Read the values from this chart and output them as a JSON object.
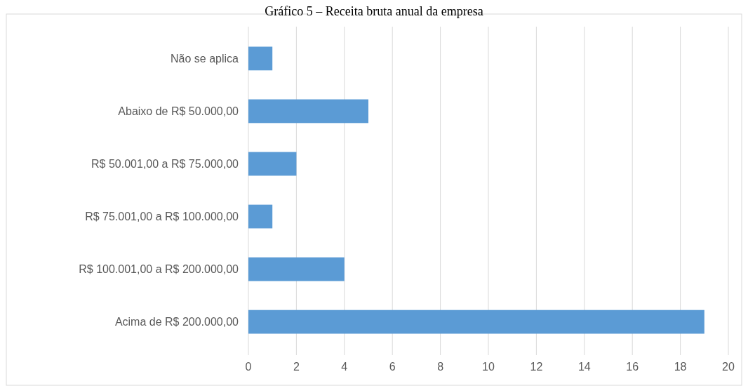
{
  "chart_data": {
    "type": "bar",
    "orientation": "horizontal",
    "title": "Gráfico 5 – Receita bruta anual da empresa",
    "categories": [
      "Não se aplica",
      "Abaixo de R$ 50.000,00",
      "R$ 50.001,00 a R$ 75.000,00",
      "R$ 75.001,00 a R$ 100.000,00",
      "R$ 100.001,00 a R$ 200.000,00",
      "Acima de R$ 200.000,00"
    ],
    "values": [
      1,
      5,
      2,
      1,
      4,
      19
    ],
    "color": "#5b9bd5",
    "xlim": [
      0,
      20
    ],
    "xticks": [
      0,
      2,
      4,
      6,
      8,
      10,
      12,
      14,
      16,
      18,
      20
    ],
    "grid": "x"
  }
}
